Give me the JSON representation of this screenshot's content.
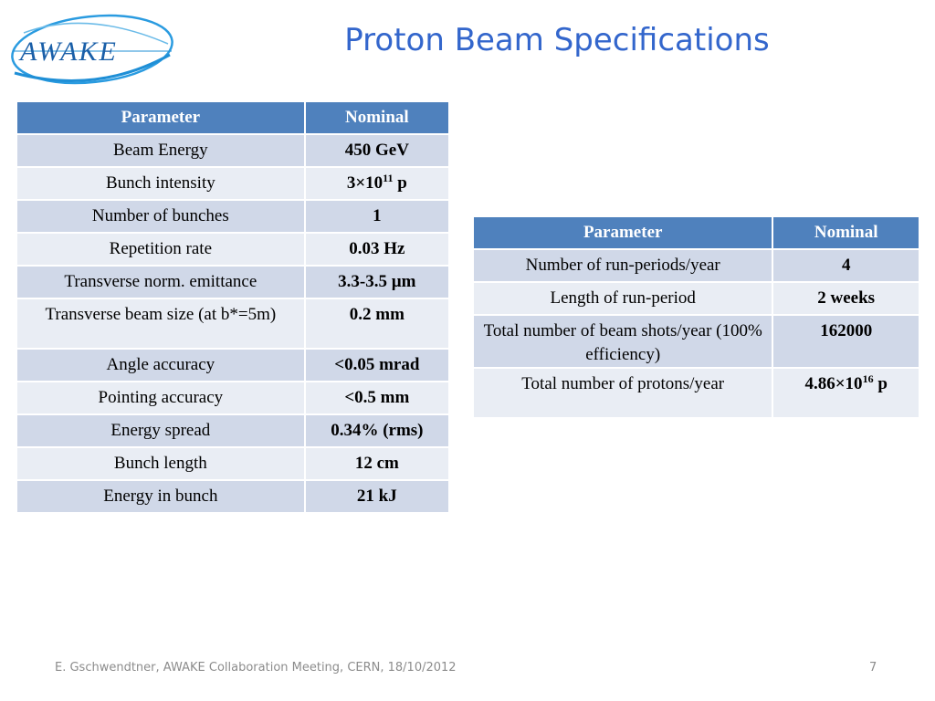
{
  "logo": {
    "text": "AWAKE",
    "colors": {
      "ring": "#1f8fd6",
      "text": "#1a5fa8"
    }
  },
  "title": "Proton Beam Specifications",
  "beam_table": {
    "headers": [
      "Parameter",
      "Nominal"
    ],
    "rows": [
      {
        "parameter": "Beam Energy",
        "value": "450 GeV"
      },
      {
        "parameter": "Bunch intensity",
        "value_base": "3×10",
        "value_exp": "11",
        "value_unit": " p"
      },
      {
        "parameter": "Number of bunches",
        "value": "1"
      },
      {
        "parameter": "Repetition rate",
        "value": "0.03 Hz"
      },
      {
        "parameter": "Transverse norm. emittance",
        "value": "3.3-3.5 µm"
      },
      {
        "parameter": "Transverse beam size (at b*=5m)",
        "value": "0.2 mm"
      },
      {
        "parameter": "Angle accuracy",
        "value": "<0.05 mrad"
      },
      {
        "parameter": "Pointing accuracy",
        "value": "<0.5 mm"
      },
      {
        "parameter": "Energy spread",
        "value": "0.34% (rms)"
      },
      {
        "parameter": "Bunch length",
        "value": "12 cm"
      },
      {
        "parameter": "Energy in bunch",
        "value": "21 kJ"
      }
    ]
  },
  "run_table": {
    "headers": [
      "Parameter",
      "Nominal"
    ],
    "rows": [
      {
        "parameter": "Number of run-periods/year",
        "value": "4"
      },
      {
        "parameter": "Length of run-period",
        "value": "2 weeks"
      },
      {
        "parameter": "Total number of beam shots/year (100% efficiency)",
        "value": "162000"
      },
      {
        "parameter": "Total number of protons/year",
        "value_base": "4.86×10",
        "value_exp": "16",
        "value_unit": " p"
      }
    ]
  },
  "footer": "E. Gschwendtner, AWAKE Collaboration Meeting, CERN, 18/10/2012",
  "page_number": "7",
  "colors": {
    "title": "#3366cc",
    "header_bg": "#4f81bd",
    "row_dark": "#d0d8e8",
    "row_light": "#e9edf4",
    "footer_text": "#8c8c8c"
  }
}
